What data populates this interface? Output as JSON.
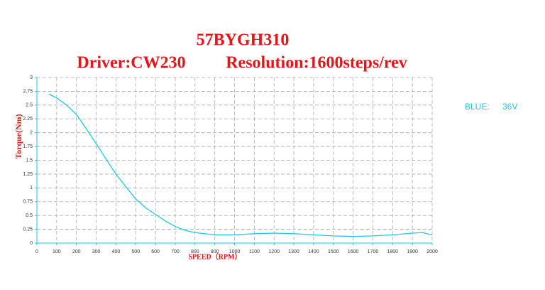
{
  "chart_data": {
    "type": "line",
    "title": "57BYGH310",
    "annotations": [
      "Driver:CW230",
      "Resolution:1600steps/rev",
      "BLUE:"
    ],
    "x_label": "SPEED（RPM）",
    "y_label": "Torque(Nm)",
    "x": [
      60,
      100,
      150,
      200,
      250,
      300,
      350,
      400,
      450,
      500,
      550,
      600,
      650,
      700,
      750,
      800,
      900,
      1000,
      1100,
      1200,
      1300,
      1400,
      1500,
      1600,
      1700,
      1800,
      1900,
      1950,
      2000
    ],
    "series": [
      {
        "name": "36V",
        "color": "#1ec8e6",
        "values": [
          2.7,
          2.63,
          2.5,
          2.33,
          2.07,
          1.8,
          1.52,
          1.25,
          1.02,
          0.8,
          0.64,
          0.52,
          0.4,
          0.3,
          0.23,
          0.19,
          0.15,
          0.15,
          0.17,
          0.18,
          0.17,
          0.15,
          0.13,
          0.12,
          0.13,
          0.15,
          0.18,
          0.19,
          0.15
        ]
      }
    ],
    "xlim": [
      0,
      2000
    ],
    "xticks": [
      0,
      100,
      200,
      300,
      400,
      500,
      600,
      700,
      800,
      900,
      1000,
      1100,
      1200,
      1300,
      1400,
      1500,
      1600,
      1700,
      1800,
      1900,
      2000
    ],
    "ylim": [
      0,
      3
    ],
    "yticks": [
      0,
      0.25,
      0.5,
      0.75,
      1,
      1.25,
      1.5,
      1.75,
      2,
      2.25,
      2.5,
      2.75,
      3
    ],
    "grid": true
  }
}
